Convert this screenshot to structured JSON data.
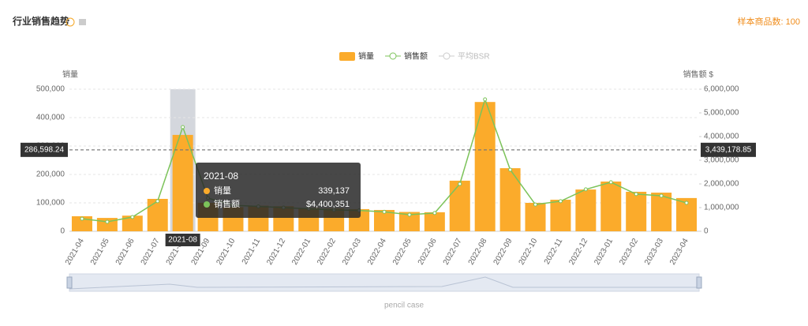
{
  "header": {
    "title": "行业销售趋势",
    "sample_count": "样本商品数: 100"
  },
  "chart_data": {
    "type": "bar-line",
    "categories": [
      "2021-04",
      "2021-05",
      "2021-06",
      "2021-07",
      "2021-08",
      "2021-09",
      "2021-10",
      "2021-11",
      "2021-12",
      "2022-01",
      "2022-02",
      "2022-03",
      "2022-04",
      "2022-05",
      "2022-06",
      "2022-07",
      "2022-08",
      "2022-09",
      "2022-10",
      "2022-11",
      "2022-12",
      "2023-01",
      "2023-02",
      "2023-03",
      "2023-04"
    ],
    "y_label": "销量",
    "y2_label": "销售额 $",
    "ylim": [
      0,
      500000
    ],
    "yticks": [
      0,
      {
        "value": 100000,
        "label": "100,000"
      },
      {
        "value": 200000,
        "label": "200,000"
      },
      {
        "value": 300000,
        "label": "300,000"
      },
      {
        "value": 400000,
        "label": "400,000"
      },
      {
        "value": 500000,
        "label": "500,000"
      }
    ],
    "y2lim": [
      0,
      6000000
    ],
    "y2ticks": [
      0,
      {
        "value": 1000000,
        "label": "1,000,000"
      },
      {
        "value": 2000000,
        "label": "2,000,000"
      },
      {
        "value": 3000000,
        "label": "3,000,000"
      },
      {
        "value": 4000000,
        "label": "4,000,000"
      },
      {
        "value": 5000000,
        "label": "5,000,000"
      },
      {
        "value": 6000000,
        "label": "6,000,000"
      }
    ],
    "grid": true,
    "series": [
      {
        "name": "销量",
        "type": "bar",
        "color": "#fbab2b",
        "values": [
          53000,
          47000,
          55000,
          114000,
          339137,
          100000,
          85000,
          90000,
          88000,
          82000,
          80000,
          78000,
          75000,
          68000,
          67000,
          178000,
          455000,
          222000,
          100000,
          111000,
          147000,
          175000,
          139000,
          136000,
          117000
        ]
      },
      {
        "name": "销售额",
        "type": "line",
        "axis": "y2",
        "color": "#7cc35a",
        "values": [
          530000,
          400000,
          600000,
          1270000,
          4400351,
          1400000,
          1100000,
          1050000,
          1000000,
          950000,
          900000,
          880000,
          820000,
          700000,
          770000,
          2000000,
          5570000,
          2600000,
          1130000,
          1270000,
          1770000,
          2070000,
          1570000,
          1500000,
          1200000
        ]
      },
      {
        "name": "平均BSR",
        "type": "line",
        "color": "#cccccc",
        "values": [
          null,
          null,
          null,
          null,
          null,
          null,
          null,
          null,
          null,
          null,
          null,
          null,
          null,
          null,
          null,
          null,
          null,
          null,
          null,
          null,
          null,
          null,
          null,
          null,
          null
        ]
      }
    ],
    "mark_lines": [
      {
        "value": 286598.24,
        "label": "286,598.24"
      },
      {
        "value": 3439178.85,
        "label": "3,439,178.85",
        "axis": "y2"
      }
    ],
    "tooltip": {
      "labels": [
        "339,137",
        "$4,400,351"
      ]
    },
    "slider_label": "pencil case"
  }
}
